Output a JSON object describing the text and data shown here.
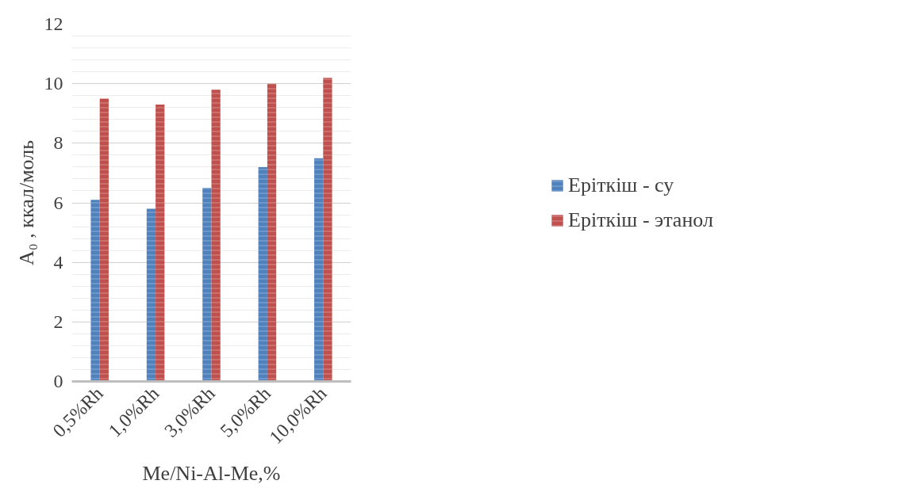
{
  "chart_data": {
    "type": "bar",
    "xlabel": "Me/Ni-Al-Me,%",
    "ylabel": "A₀ , ккал/моль",
    "categories": [
      "0,5%Rh",
      "1,0%Rh",
      "3,0%Rh",
      "5,0%Rh",
      "10,0%Rh"
    ],
    "series": [
      {
        "name": "Еріткіш - су",
        "color": "#4f81bd",
        "values": [
          6.1,
          5.8,
          6.5,
          7.2,
          7.5
        ]
      },
      {
        "name": "Еріткіш - этанол",
        "color": "#c0504d",
        "values": [
          9.5,
          9.3,
          9.8,
          10.0,
          10.2
        ]
      }
    ],
    "ylim": [
      0,
      12
    ],
    "yticks": [
      0,
      2,
      4,
      6,
      8,
      10,
      12
    ],
    "grid": "y",
    "legend": "right"
  }
}
